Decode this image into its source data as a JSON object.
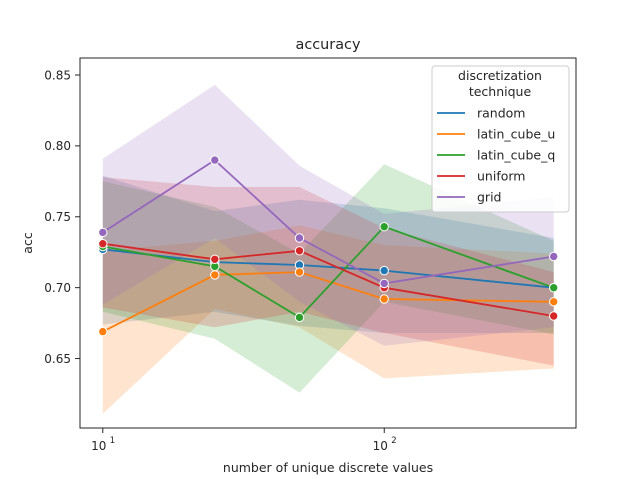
{
  "chart_data": {
    "type": "line",
    "title": "accuracy",
    "xlabel": "number of unique discrete values",
    "ylabel": "acc",
    "x_scale": "log",
    "xlim": [
      8.3,
      480
    ],
    "ylim": [
      0.601,
      0.862
    ],
    "x": [
      10,
      25,
      50,
      100,
      400
    ],
    "x_ticks": [
      {
        "value": 10,
        "base": "10",
        "exp": "1"
      },
      {
        "value": 100,
        "base": "10",
        "exp": "2"
      }
    ],
    "y_ticks": [
      0.65,
      0.7,
      0.75,
      0.8,
      0.85
    ],
    "y_tick_labels": [
      "0.65",
      "0.70",
      "0.75",
      "0.80",
      "0.85"
    ],
    "grid": false,
    "legend": {
      "title_line1": "discretization",
      "title_line2": "technique",
      "placement": "top-right"
    },
    "series": [
      {
        "name": "random",
        "color": "#1f77b4",
        "values": [
          0.727,
          0.718,
          0.716,
          0.712,
          0.7
        ],
        "ci_low": [
          0.674,
          0.683,
          0.673,
          0.668,
          0.668
        ],
        "ci_high": [
          0.779,
          0.754,
          0.762,
          0.756,
          0.735
        ]
      },
      {
        "name": "latin_cube_u",
        "color": "#ff7f0e",
        "values": [
          0.669,
          0.709,
          0.711,
          0.692,
          0.69
        ],
        "ci_low": [
          0.611,
          0.685,
          0.672,
          0.636,
          0.643
        ],
        "ci_high": [
          0.726,
          0.733,
          0.744,
          0.73,
          0.724
        ]
      },
      {
        "name": "latin_cube_q",
        "color": "#2ca02c",
        "values": [
          0.729,
          0.715,
          0.679,
          0.743,
          0.7
        ],
        "ci_low": [
          0.683,
          0.664,
          0.626,
          0.69,
          0.667
        ],
        "ci_high": [
          0.775,
          0.757,
          0.724,
          0.787,
          0.733
        ]
      },
      {
        "name": "uniform",
        "color": "#d62728",
        "values": [
          0.731,
          0.72,
          0.726,
          0.7,
          0.68
        ],
        "ci_low": [
          0.686,
          0.672,
          0.683,
          0.668,
          0.645
        ],
        "ci_high": [
          0.778,
          0.771,
          0.771,
          0.742,
          0.711
        ]
      },
      {
        "name": "grid",
        "color": "#9467bd",
        "values": [
          0.739,
          0.79,
          0.735,
          0.703,
          0.722
        ],
        "ci_low": [
          0.688,
          0.735,
          0.69,
          0.659,
          0.672
        ],
        "ci_high": [
          0.791,
          0.843,
          0.786,
          0.752,
          0.764
        ]
      }
    ]
  }
}
